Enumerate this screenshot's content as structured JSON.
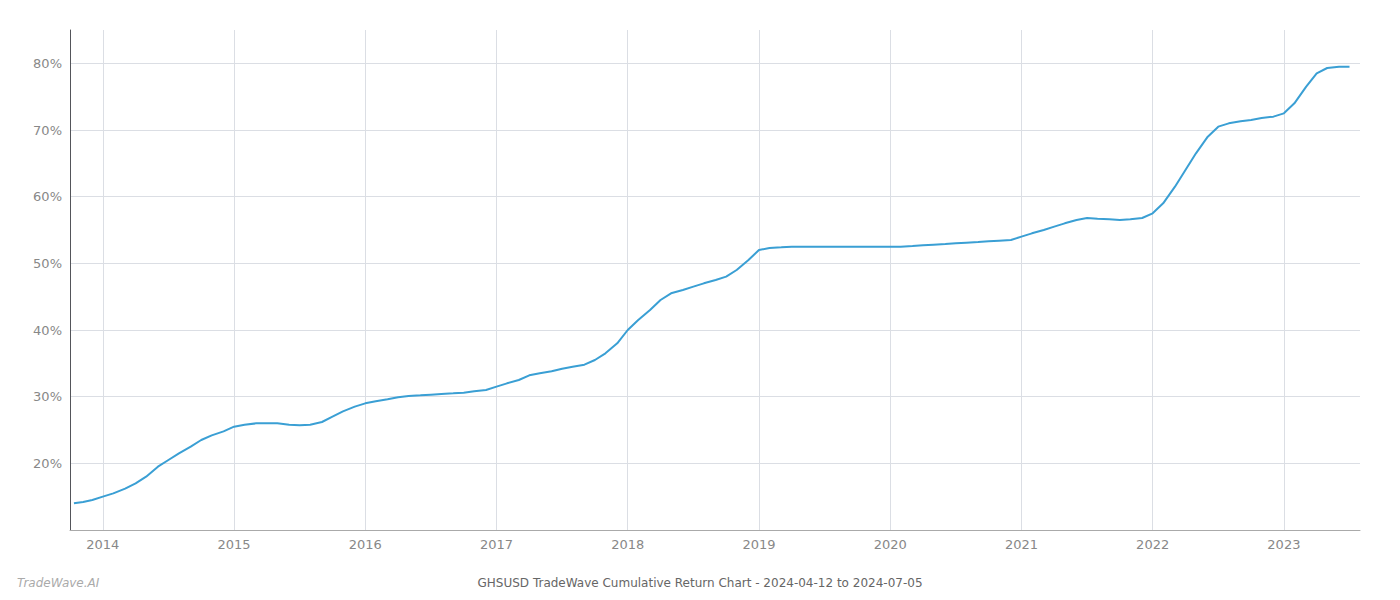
{
  "chart_data": {
    "type": "line",
    "title": "GHSUSD TradeWave Cumulative Return Chart - 2024-04-12 to 2024-07-05",
    "annotations": [
      "TradeWave.AI"
    ],
    "color": "#3a9fd4",
    "grid": true,
    "x": [
      2013.78,
      2013.85,
      2013.92,
      2014.0,
      2014.08,
      2014.17,
      2014.25,
      2014.33,
      2014.42,
      2014.5,
      2014.58,
      2014.67,
      2014.75,
      2014.83,
      2014.92,
      2015.0,
      2015.08,
      2015.17,
      2015.25,
      2015.33,
      2015.42,
      2015.5,
      2015.58,
      2015.67,
      2015.75,
      2015.83,
      2015.92,
      2016.0,
      2016.08,
      2016.17,
      2016.25,
      2016.33,
      2016.42,
      2016.5,
      2016.58,
      2016.67,
      2016.75,
      2016.83,
      2016.92,
      2017.0,
      2017.08,
      2017.17,
      2017.25,
      2017.33,
      2017.42,
      2017.5,
      2017.58,
      2017.67,
      2017.75,
      2017.83,
      2017.92,
      2018.0,
      2018.08,
      2018.17,
      2018.25,
      2018.33,
      2018.42,
      2018.5,
      2018.58,
      2018.67,
      2018.75,
      2018.83,
      2018.92,
      2019.0,
      2019.08,
      2019.17,
      2019.25,
      2019.33,
      2019.42,
      2019.5,
      2019.58,
      2019.67,
      2019.75,
      2019.83,
      2019.92,
      2020.0,
      2020.08,
      2020.17,
      2020.25,
      2020.33,
      2020.42,
      2020.5,
      2020.58,
      2020.67,
      2020.75,
      2020.83,
      2020.92,
      2021.0,
      2021.08,
      2021.17,
      2021.25,
      2021.33,
      2021.42,
      2021.5,
      2021.58,
      2021.67,
      2021.75,
      2021.83,
      2021.92,
      2022.0,
      2022.08,
      2022.17,
      2022.25,
      2022.33,
      2022.42,
      2022.5,
      2022.58,
      2022.67,
      2022.75,
      2022.83,
      2022.92,
      2023.0,
      2023.08,
      2023.17,
      2023.25,
      2023.33,
      2023.42,
      2023.5
    ],
    "values": [
      14.0,
      14.2,
      14.5,
      15.0,
      15.5,
      16.2,
      17.0,
      18.0,
      19.5,
      20.5,
      21.5,
      22.5,
      23.5,
      24.2,
      24.8,
      25.5,
      25.8,
      26.0,
      26.0,
      26.0,
      25.8,
      25.7,
      25.8,
      26.2,
      27.0,
      27.8,
      28.5,
      29.0,
      29.3,
      29.6,
      29.9,
      30.1,
      30.2,
      30.3,
      30.4,
      30.5,
      30.6,
      30.8,
      31.0,
      31.5,
      32.0,
      32.5,
      33.2,
      33.5,
      33.8,
      34.2,
      34.5,
      34.8,
      35.5,
      36.5,
      38.0,
      40.0,
      41.5,
      43.0,
      44.5,
      45.5,
      46.0,
      46.5,
      47.0,
      47.5,
      48.0,
      49.0,
      50.5,
      52.0,
      52.3,
      52.4,
      52.5,
      52.5,
      52.5,
      52.5,
      52.5,
      52.5,
      52.5,
      52.5,
      52.5,
      52.5,
      52.5,
      52.6,
      52.7,
      52.8,
      52.9,
      53.0,
      53.1,
      53.2,
      53.3,
      53.4,
      53.5,
      54.0,
      54.5,
      55.0,
      55.5,
      56.0,
      56.5,
      56.8,
      56.7,
      56.6,
      56.5,
      56.6,
      56.8,
      57.5,
      59.0,
      61.5,
      64.0,
      66.5,
      69.0,
      70.5,
      71.0,
      71.3,
      71.5,
      71.8,
      72.0,
      72.5,
      74.0,
      76.5,
      78.5,
      79.3,
      79.5,
      79.5
    ],
    "xlim": [
      2013.75,
      2023.58
    ],
    "ylim": [
      10,
      85
    ],
    "xticks": [
      2014,
      2015,
      2016,
      2017,
      2018,
      2019,
      2020,
      2021,
      2022,
      2023
    ],
    "yticks": [
      {
        "value": 20,
        "label": "20%"
      },
      {
        "value": 30,
        "label": "30%"
      },
      {
        "value": 40,
        "label": "40%"
      },
      {
        "value": 50,
        "label": "50%"
      },
      {
        "value": 60,
        "label": "60%"
      },
      {
        "value": 70,
        "label": "70%"
      },
      {
        "value": 80,
        "label": "80%"
      }
    ]
  }
}
